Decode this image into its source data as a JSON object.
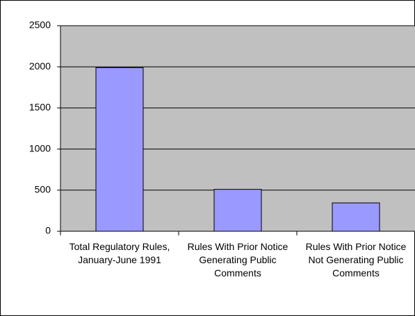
{
  "chart_data": {
    "type": "bar",
    "categories": [
      "Total Regulatory Rules, January-June 1991",
      "Rules With Prior Notice Generating Public Comments",
      "Rules With Prior Notice Not Generating Public Comments"
    ],
    "values": [
      1990,
      510,
      345
    ],
    "color": "#9999ff",
    "ylim": [
      0,
      2500
    ],
    "yticks": [
      0,
      500,
      1000,
      1500,
      2000,
      2500
    ],
    "grid": true
  }
}
